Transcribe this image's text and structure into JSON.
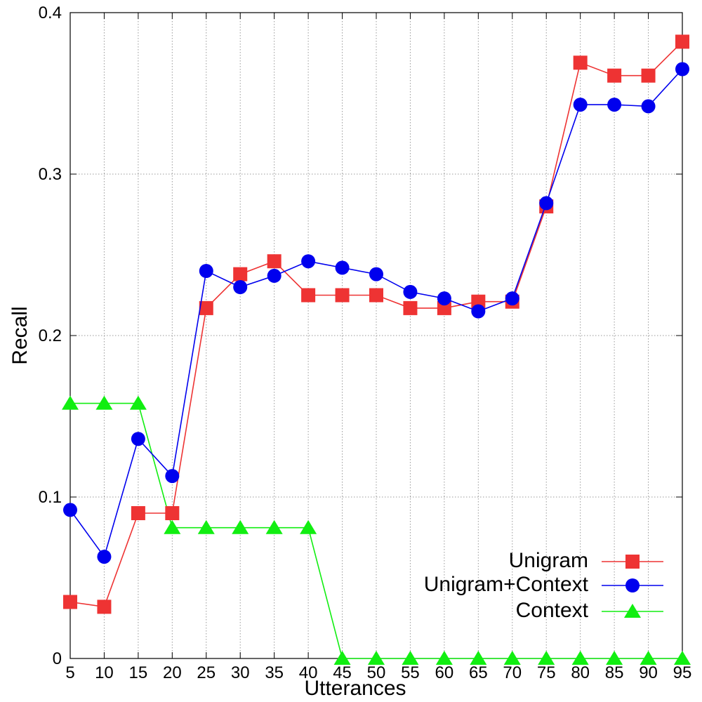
{
  "chart_data": {
    "type": "line",
    "title": "",
    "xlabel": "Utterances",
    "ylabel": "Recall",
    "x": [
      5,
      10,
      15,
      20,
      25,
      30,
      35,
      40,
      45,
      50,
      55,
      60,
      65,
      70,
      75,
      80,
      85,
      90,
      95
    ],
    "xlim": [
      5,
      95
    ],
    "ylim": [
      0,
      0.4
    ],
    "yticks": [
      "0",
      "0.1",
      "0.2",
      "0.3",
      "0.4"
    ],
    "xticks": [
      "5",
      "10",
      "15",
      "20",
      "25",
      "30",
      "35",
      "40",
      "45",
      "50",
      "55",
      "60",
      "65",
      "70",
      "75",
      "80",
      "85",
      "90",
      "95"
    ],
    "grid": true,
    "legend_position": "bottom-right",
    "series": [
      {
        "name": "Unigram",
        "color": "#ee3333",
        "marker": "square",
        "values": [
          0.035,
          0.032,
          0.09,
          0.09,
          0.217,
          0.238,
          0.246,
          0.225,
          0.225,
          0.225,
          0.217,
          0.217,
          0.221,
          0.221,
          0.28,
          0.369,
          0.361,
          0.361,
          0.382
        ]
      },
      {
        "name": "Unigram+Context",
        "color": "#0000ee",
        "marker": "circle",
        "values": [
          0.092,
          0.063,
          0.136,
          0.113,
          0.24,
          0.23,
          0.237,
          0.246,
          0.242,
          0.238,
          0.227,
          0.223,
          0.215,
          0.223,
          0.282,
          0.343,
          0.343,
          0.342,
          0.365
        ]
      },
      {
        "name": "Context",
        "color": "#11ee11",
        "marker": "triangle",
        "values": [
          0.158,
          0.158,
          0.158,
          0.081,
          0.081,
          0.081,
          0.081,
          0.081,
          0,
          0,
          0,
          0,
          0,
          0,
          0,
          0,
          0,
          0,
          0
        ]
      }
    ]
  }
}
